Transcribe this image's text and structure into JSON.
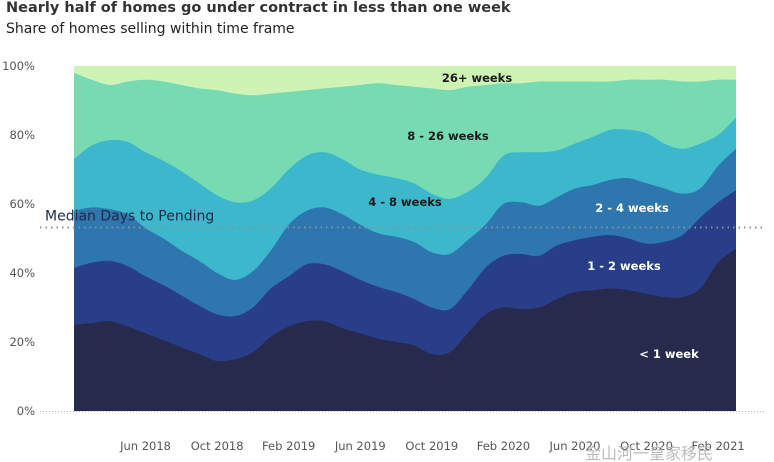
{
  "chart_data": {
    "type": "area",
    "title": "Nearly half of homes go under contract in less than one week",
    "subtitle": "Share of homes selling within time frame",
    "yticks": [
      "0%",
      "20%",
      "40%",
      "60%",
      "80%",
      "100%"
    ],
    "ylim": [
      0,
      100
    ],
    "x_tick_labels": [
      "Jun 2018",
      "Oct 2018",
      "Feb 2019",
      "Jun 2019",
      "Oct 2019",
      "Feb 2020",
      "Jun 2020",
      "Oct 2020",
      "Feb 2021"
    ],
    "x_tick_index": [
      4,
      8,
      12,
      16,
      20,
      24,
      28,
      32,
      36
    ],
    "series_labels": [
      "< 1 week",
      "1 - 2 weeks",
      "2 - 4 weeks",
      "4 - 8 weeks",
      "8 - 26 weeks",
      "26+ weeks"
    ],
    "cumulative": {
      "lt1w": [
        25,
        25.5,
        26,
        24.5,
        22.5,
        20.5,
        18.5,
        16.5,
        14.5,
        15,
        17,
        21.5,
        24.5,
        26,
        26,
        24,
        22.5,
        21,
        20,
        19,
        16.5,
        17,
        22.5,
        28,
        30,
        29.5,
        30,
        32.5,
        34.5,
        35,
        35.5,
        35,
        34,
        33,
        33,
        35.5,
        43,
        47
      ],
      "lt2w": [
        41.5,
        43,
        43.5,
        42,
        39,
        36.5,
        33.5,
        30.5,
        28,
        27.5,
        30,
        35.5,
        39,
        42.5,
        42.5,
        40.5,
        38,
        36,
        34.5,
        32.5,
        30,
        29.5,
        35,
        41.5,
        45,
        45.5,
        45,
        48,
        49.5,
        50.5,
        51,
        50,
        48.5,
        49,
        51,
        56,
        60.5,
        64
      ],
      "lt4w": [
        58,
        59,
        58.5,
        57,
        53,
        50,
        46.5,
        43.5,
        40,
        38,
        40.5,
        46.5,
        54,
        58,
        59,
        57,
        54,
        51.5,
        50.5,
        49,
        46,
        45.5,
        49.5,
        54,
        60,
        60.5,
        59.5,
        62,
        64.5,
        65.5,
        67,
        67.5,
        66,
        64.5,
        63,
        64.5,
        71,
        76
      ],
      "lt8w": [
        73,
        77,
        78.5,
        78,
        75,
        72.5,
        69.5,
        66,
        62.5,
        60.5,
        61,
        64.5,
        70,
        74,
        75,
        73,
        70,
        68.5,
        67.5,
        66,
        63,
        61.5,
        63.5,
        67.5,
        74,
        75,
        75,
        75.5,
        77.5,
        79.5,
        81.5,
        81.5,
        80.5,
        77.5,
        76,
        77.5,
        80,
        85
      ],
      "lt26w": [
        98,
        96,
        94.5,
        95.5,
        96,
        95.5,
        94.5,
        93.5,
        93,
        92,
        91.5,
        92,
        92.5,
        93,
        93.5,
        94,
        94.5,
        95,
        94.5,
        94,
        93.5,
        93,
        94,
        94.5,
        95,
        95,
        95.5,
        95.5,
        95.5,
        95.5,
        95.5,
        96,
        96,
        96,
        95.5,
        95.5,
        96,
        96
      ],
      "all": [
        100,
        100,
        100,
        100,
        100,
        100,
        100,
        100,
        100,
        100,
        100,
        100,
        100,
        100,
        100,
        100,
        100,
        100,
        100,
        100,
        100,
        100,
        100,
        100,
        100,
        100,
        100,
        100,
        100,
        100,
        100,
        100,
        100,
        100,
        100,
        100,
        100,
        100
      ]
    },
    "colors": {
      "lt1w": "#262a4d",
      "lt2w": "#283e88",
      "lt4w": "#2e76ae",
      "lt8w": "#3cb7cc",
      "lt26w": "#76dbb3",
      "all": "#cef3b5"
    },
    "median_label": "Median Days to Pending",
    "median_value": 50,
    "grid": false
  },
  "watermark": "金山河一皇家移民"
}
